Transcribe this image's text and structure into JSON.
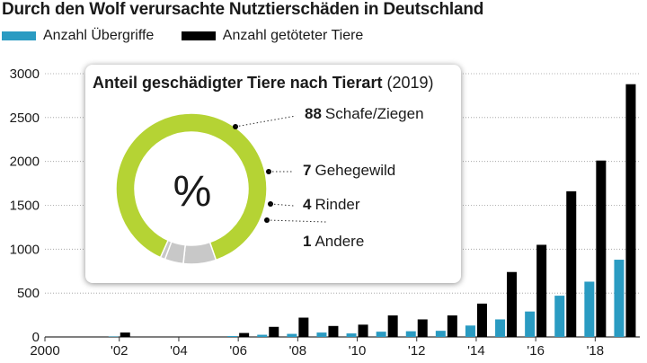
{
  "title": "Durch den Wolf verursachte Nutztierschäden in Deutschland",
  "legend": [
    {
      "label": "Anzahl Übergriffe",
      "color": "#2a9bc2"
    },
    {
      "label": "Anzahl getöteter Tiere",
      "color": "#000000"
    }
  ],
  "chart_data": [
    {
      "type": "bar",
      "title": "Durch den Wolf verursachte Nutztierschäden in Deutschland",
      "categories": [
        "2000",
        "2001",
        "2002",
        "2003",
        "2004",
        "2005",
        "2006",
        "2007",
        "2008",
        "2009",
        "2010",
        "2011",
        "2012",
        "2013",
        "2014",
        "2015",
        "2016",
        "2017",
        "2018",
        "2019"
      ],
      "x_tick_labels": [
        "2000",
        "'02",
        "'04",
        "'06",
        "'08",
        "'10",
        "'12",
        "'14",
        "'16",
        "'18"
      ],
      "ylim": [
        0,
        3000
      ],
      "y_ticks": [
        0,
        500,
        1000,
        1500,
        2000,
        2500,
        3000
      ],
      "grid": true,
      "series": [
        {
          "name": "Anzahl Übergriffe",
          "color": "#2a9bc2",
          "values": [
            0,
            0,
            5,
            0,
            0,
            0,
            10,
            25,
            35,
            50,
            40,
            60,
            65,
            70,
            130,
            200,
            290,
            470,
            630,
            880
          ]
        },
        {
          "name": "Anzahl getöteter Tiere",
          "color": "#000000",
          "values": [
            0,
            0,
            50,
            0,
            0,
            0,
            45,
            115,
            220,
            125,
            140,
            245,
            200,
            245,
            380,
            740,
            1050,
            1660,
            2010,
            2880
          ]
        }
      ]
    },
    {
      "type": "pie",
      "title": "Anteil geschädigter Tiere nach Tierart",
      "year": "(2019)",
      "center_label": "%",
      "slices": [
        {
          "value": 88,
          "label": "Schafe/Ziegen",
          "color": "#b5d334"
        },
        {
          "value": 7,
          "label": "Gehegewild",
          "color": "#c8c8c8"
        },
        {
          "value": 4,
          "label": "Rinder",
          "color": "#c8c8c8"
        },
        {
          "value": 1,
          "label": "Andere",
          "color": "#c8c8c8"
        }
      ]
    }
  ]
}
